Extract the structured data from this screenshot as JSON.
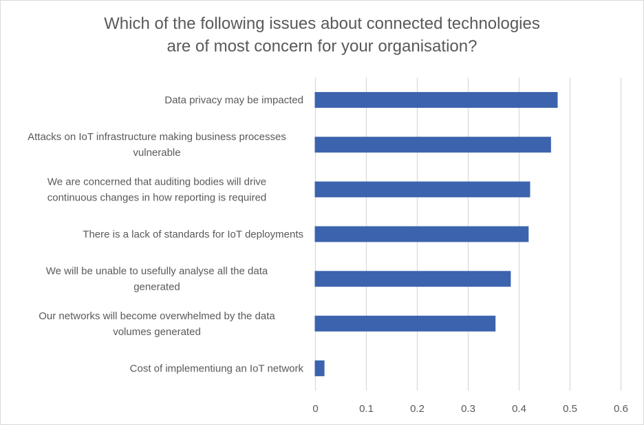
{
  "chart_data": {
    "type": "bar",
    "orientation": "horizontal",
    "title": "Which of the following issues about connected technologies are of most concern for your organisation?",
    "title_lines": [
      "Which of the following issues about connected technologies",
      "are of most concern for your organisation?"
    ],
    "categories": [
      [
        "Data privacy may be impacted"
      ],
      [
        "Attacks on IoT infrastructure making business processes",
        "vulnerable"
      ],
      [
        "We are concerned that auditing bodies will drive",
        "continuous changes in how reporting is required"
      ],
      [
        "There is a lack of standards for IoT deployments"
      ],
      [
        "We will be unable to usefully analyse all the data",
        "generated"
      ],
      [
        "Our networks will become overwhelmed by the data",
        "volumes generated"
      ],
      [
        "Cost of implementiung an IoT network"
      ]
    ],
    "values": [
      0.477,
      0.464,
      0.423,
      0.42,
      0.385,
      0.355,
      0.019
    ],
    "xlim": [
      0,
      0.6
    ],
    "xticks": [
      "0",
      "0.1",
      "0.2",
      "0.3",
      "0.4",
      "0.5",
      "0.6"
    ],
    "grid": true,
    "legend": "none",
    "bar_color": "#3c63ad",
    "grid_color": "#d9d9d9"
  }
}
